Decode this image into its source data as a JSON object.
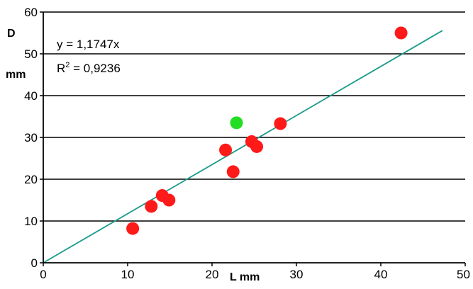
{
  "chart_data": {
    "type": "scatter",
    "title": "",
    "xlabel": "L mm",
    "ylabel_line1": "D",
    "ylabel_line2": "mm",
    "xlim": [
      0,
      50
    ],
    "ylim": [
      0,
      60
    ],
    "xticks": [
      "0",
      "10",
      "20",
      "30",
      "40",
      "50"
    ],
    "yticks": [
      "0",
      "10",
      "20",
      "30",
      "40",
      "50",
      "60"
    ],
    "grid": "horizontal",
    "trendline": {
      "equation": "y = 1,1747x",
      "r2_prefix": "R",
      "r2_exponent": "2",
      "r2_value": " = 0,9236",
      "slope": 1.1747,
      "x_range": [
        0,
        47.3
      ],
      "color": "#1a9a8a"
    },
    "series": [
      {
        "color": "#ff1a1a",
        "points": [
          {
            "x": 10.6,
            "y": 8.2
          },
          {
            "x": 12.8,
            "y": 13.5
          },
          {
            "x": 14.1,
            "y": 16.1
          },
          {
            "x": 14.9,
            "y": 15.0
          },
          {
            "x": 21.6,
            "y": 27.0
          },
          {
            "x": 22.5,
            "y": 21.8
          },
          {
            "x": 24.7,
            "y": 29.0
          },
          {
            "x": 25.3,
            "y": 27.8
          },
          {
            "x": 28.1,
            "y": 33.3
          },
          {
            "x": 42.4,
            "y": 55.0
          }
        ]
      },
      {
        "color": "#22dd22",
        "points": [
          {
            "x": 22.9,
            "y": 33.5
          }
        ]
      }
    ]
  }
}
